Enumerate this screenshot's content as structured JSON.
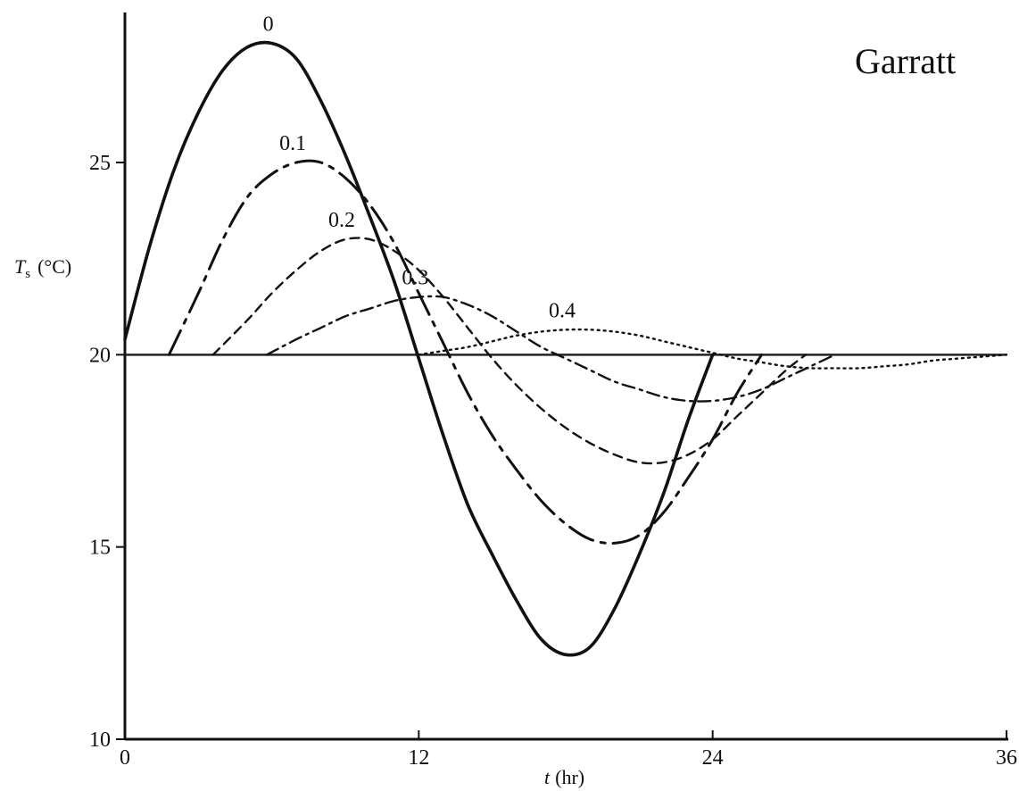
{
  "chart_data": {
    "type": "line",
    "credit": "Garratt",
    "xlabel_var": "t",
    "xlabel_unit": "(hr)",
    "ylabel_var": "T",
    "ylabel_sub": "s",
    "ylabel_unit": "(°C)",
    "xlim": [
      0,
      36
    ],
    "ylim": [
      10,
      29
    ],
    "x_ticks": [
      0,
      12,
      24,
      36
    ],
    "y_ticks": [
      10,
      15,
      20,
      25
    ],
    "grid": false,
    "legend": "none",
    "baseline": 20,
    "series": [
      {
        "name": "0",
        "style": "solid",
        "points": [
          [
            0,
            20.4
          ],
          [
            1,
            22.8
          ],
          [
            2,
            24.8
          ],
          [
            3,
            26.3
          ],
          [
            4,
            27.4
          ],
          [
            5,
            28.0
          ],
          [
            6,
            28.1
          ],
          [
            7,
            27.7
          ],
          [
            8,
            26.6
          ],
          [
            9,
            25.2
          ],
          [
            10,
            23.6
          ],
          [
            11,
            21.9
          ],
          [
            12,
            19.9
          ],
          [
            13,
            17.9
          ],
          [
            14,
            16.1
          ],
          [
            15,
            14.8
          ],
          [
            16,
            13.6
          ],
          [
            17,
            12.6
          ],
          [
            18,
            12.2
          ],
          [
            19,
            12.4
          ],
          [
            20,
            13.4
          ],
          [
            21,
            14.8
          ],
          [
            22,
            16.4
          ],
          [
            23,
            18.3
          ],
          [
            24,
            20.0
          ]
        ]
      },
      {
        "name": "0.1",
        "style": "longdash",
        "points": [
          [
            1.8,
            20.0
          ],
          [
            3,
            21.6
          ],
          [
            4,
            23.0
          ],
          [
            5,
            24.1
          ],
          [
            6,
            24.7
          ],
          [
            7,
            25.0
          ],
          [
            8,
            25.0
          ],
          [
            9,
            24.6
          ],
          [
            10,
            23.9
          ],
          [
            11,
            22.9
          ],
          [
            12,
            21.6
          ],
          [
            13,
            20.3
          ],
          [
            14,
            19.0
          ],
          [
            15,
            17.9
          ],
          [
            16,
            17.0
          ],
          [
            17,
            16.2
          ],
          [
            18,
            15.6
          ],
          [
            19,
            15.2
          ],
          [
            20,
            15.1
          ],
          [
            21,
            15.3
          ],
          [
            22,
            15.9
          ],
          [
            23,
            16.8
          ],
          [
            24,
            17.8
          ],
          [
            25,
            19.0
          ],
          [
            26,
            20.0
          ]
        ]
      },
      {
        "name": "0.2",
        "style": "dash",
        "points": [
          [
            3.6,
            20.0
          ],
          [
            5,
            20.9
          ],
          [
            6,
            21.6
          ],
          [
            7,
            22.2
          ],
          [
            8,
            22.7
          ],
          [
            9,
            23.0
          ],
          [
            10,
            23.0
          ],
          [
            11,
            22.7
          ],
          [
            12,
            22.2
          ],
          [
            13,
            21.5
          ],
          [
            14,
            20.7
          ],
          [
            15,
            19.9
          ],
          [
            16,
            19.2
          ],
          [
            17,
            18.6
          ],
          [
            18,
            18.1
          ],
          [
            19,
            17.7
          ],
          [
            20,
            17.4
          ],
          [
            21,
            17.2
          ],
          [
            22,
            17.2
          ],
          [
            23,
            17.4
          ],
          [
            24,
            17.8
          ],
          [
            25,
            18.4
          ],
          [
            26,
            19.0
          ],
          [
            27,
            19.6
          ],
          [
            27.8,
            20.0
          ]
        ]
      },
      {
        "name": "0.3",
        "style": "dashdot",
        "points": [
          [
            5.8,
            20.0
          ],
          [
            7,
            20.4
          ],
          [
            8,
            20.7
          ],
          [
            9,
            21.0
          ],
          [
            10,
            21.2
          ],
          [
            11,
            21.4
          ],
          [
            12,
            21.5
          ],
          [
            13,
            21.5
          ],
          [
            14,
            21.3
          ],
          [
            15,
            21.0
          ],
          [
            16,
            20.6
          ],
          [
            17,
            20.2
          ],
          [
            18,
            19.9
          ],
          [
            19,
            19.6
          ],
          [
            20,
            19.3
          ],
          [
            21,
            19.1
          ],
          [
            22,
            18.9
          ],
          [
            23,
            18.8
          ],
          [
            24,
            18.8
          ],
          [
            25,
            18.9
          ],
          [
            26,
            19.1
          ],
          [
            27,
            19.4
          ],
          [
            28,
            19.7
          ],
          [
            29,
            20.0
          ]
        ]
      },
      {
        "name": "0.4",
        "style": "dotted",
        "points": [
          [
            12,
            20.0
          ],
          [
            13,
            20.1
          ],
          [
            14,
            20.2
          ],
          [
            15,
            20.35
          ],
          [
            16,
            20.5
          ],
          [
            17,
            20.6
          ],
          [
            18,
            20.65
          ],
          [
            19,
            20.65
          ],
          [
            20,
            20.6
          ],
          [
            21,
            20.5
          ],
          [
            22,
            20.35
          ],
          [
            23,
            20.2
          ],
          [
            24,
            20.05
          ],
          [
            25,
            19.9
          ],
          [
            26,
            19.8
          ],
          [
            27,
            19.7
          ],
          [
            28,
            19.65
          ],
          [
            29,
            19.65
          ],
          [
            30,
            19.65
          ],
          [
            31,
            19.7
          ],
          [
            32,
            19.75
          ],
          [
            33,
            19.85
          ],
          [
            34,
            19.9
          ],
          [
            35,
            19.95
          ],
          [
            36,
            20.0
          ]
        ]
      }
    ]
  }
}
